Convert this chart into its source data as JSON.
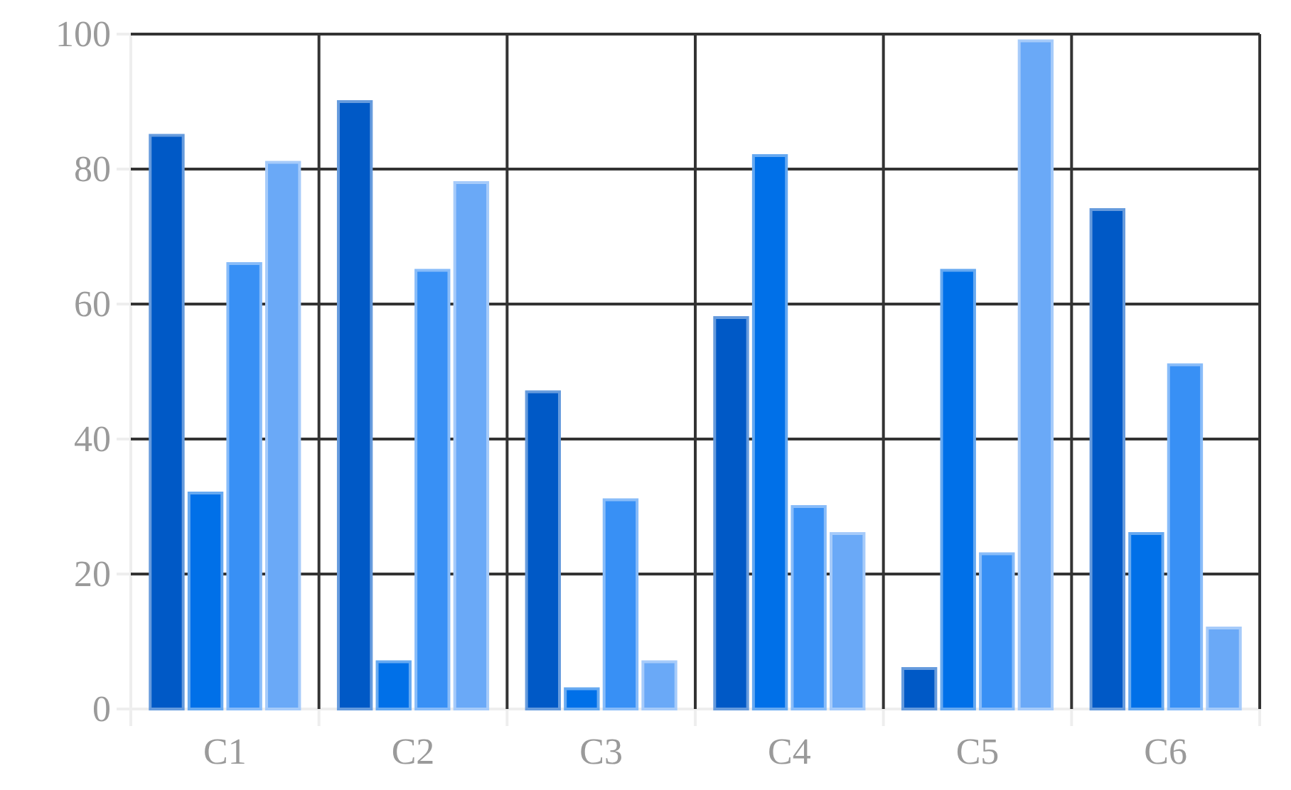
{
  "chart_data": {
    "type": "bar",
    "categories": [
      "C1",
      "C2",
      "C3",
      "C4",
      "C5",
      "C6"
    ],
    "series": [
      {
        "color": "#0059c6",
        "values": [
          85,
          90,
          47,
          58,
          6,
          74
        ]
      },
      {
        "color": "#0070e8",
        "values": [
          32,
          7,
          3,
          82,
          65,
          26
        ]
      },
      {
        "color": "#3890f5",
        "values": [
          66,
          65,
          31,
          30,
          23,
          51
        ]
      },
      {
        "color": "#6aa9f7",
        "values": [
          81,
          78,
          7,
          26,
          99,
          12
        ]
      }
    ],
    "ylim": [
      0,
      100
    ],
    "yticks": [
      0,
      20,
      40,
      60,
      80,
      100
    ],
    "grid": true
  }
}
